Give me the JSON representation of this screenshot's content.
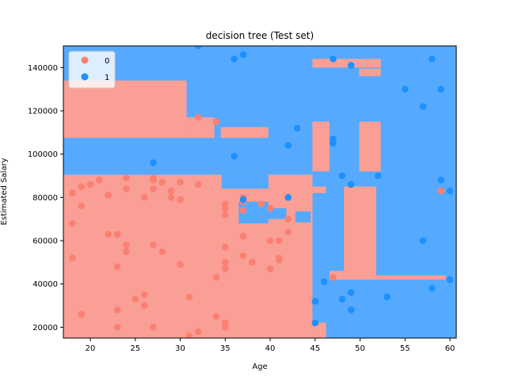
{
  "chart_data": {
    "type": "scatter",
    "title": "decision tree (Test set)",
    "xlabel": "Age",
    "ylabel": "Estimated Salary",
    "xlim": [
      17,
      60.7
    ],
    "ylim": [
      15000,
      150000
    ],
    "xticks": [
      20,
      25,
      30,
      35,
      40,
      45,
      50,
      55,
      60
    ],
    "yticks": [
      20000,
      40000,
      60000,
      80000,
      100000,
      120000,
      140000
    ],
    "grid": false,
    "legend_position": "top-left",
    "colors": {
      "class_0": "#fa8072",
      "class_1": "#1e90ff",
      "region_0": "#fa9f95",
      "region_1": "#55aaff"
    },
    "regions": [
      {
        "class": "0",
        "x": [
          17,
          30.7
        ],
        "y": [
          107500,
          134000
        ]
      },
      {
        "class": "1",
        "x": [
          30.7,
          44.5
        ],
        "y": [
          117000,
          134000
        ]
      },
      {
        "class": "0",
        "x": [
          30.7,
          33.8
        ],
        "y": [
          107500,
          117000
        ]
      },
      {
        "class": "0",
        "x": [
          34.5,
          39.8
        ],
        "y": [
          107500,
          112500
        ]
      },
      {
        "class": "0",
        "x": [
          17,
          44.7
        ],
        "y": [
          15000,
          90500
        ]
      },
      {
        "class": "1",
        "x": [
          34.6,
          39.8
        ],
        "y": [
          81000,
          90500
        ]
      },
      {
        "class": "0",
        "x": [
          34.5,
          44.7
        ],
        "y": [
          74000,
          84000
        ]
      },
      {
        "class": "1",
        "x": [
          36.5,
          39.8
        ],
        "y": [
          68000,
          78000
        ]
      },
      {
        "class": "1",
        "x": [
          39.5,
          41.8
        ],
        "y": [
          70000,
          75000
        ]
      },
      {
        "class": "1",
        "x": [
          42.8,
          44.5
        ],
        "y": [
          68500,
          73500
        ]
      },
      {
        "class": "0",
        "x": [
          44.7,
          46.2
        ],
        "y": [
          82000,
          85000
        ]
      },
      {
        "class": "0",
        "x": [
          44.7,
          46.2
        ],
        "y": [
          15000,
          22000
        ]
      },
      {
        "class": "0",
        "x": [
          44.7,
          46.2
        ],
        "y": [
          15000,
          22000
        ]
      },
      {
        "class": "0",
        "x": [
          45.2,
          46.2
        ],
        "y": [
          15000,
          22000
        ]
      },
      {
        "class": "0",
        "x": [
          44.7,
          46.6
        ],
        "y": [
          92000,
          115000
        ]
      },
      {
        "class": "0",
        "x": [
          44.7,
          52.3
        ],
        "y": [
          140000,
          144000
        ]
      },
      {
        "class": "0",
        "x": [
          49.9,
          52.3
        ],
        "y": [
          136000,
          139500
        ]
      },
      {
        "class": "0",
        "x": [
          49.9,
          52.3
        ],
        "y": [
          92000,
          115000
        ]
      },
      {
        "class": "0",
        "x": [
          46.6,
          51.8
        ],
        "y": [
          42000,
          85000
        ]
      },
      {
        "class": "1",
        "x": [
          46.6,
          48.2
        ],
        "y": [
          46000,
          85000
        ]
      },
      {
        "class": "0",
        "x": [
          47.2,
          59.5
        ],
        "y": [
          42000,
          44000
        ]
      }
    ],
    "series": [
      {
        "name": "0",
        "points": [
          [
            18,
            82000
          ],
          [
            18,
            68000
          ],
          [
            18,
            52000
          ],
          [
            19,
            85000
          ],
          [
            19,
            76000
          ],
          [
            19,
            26000
          ],
          [
            20,
            86000
          ],
          [
            21,
            88000
          ],
          [
            22,
            81000
          ],
          [
            22,
            63000
          ],
          [
            23,
            63000
          ],
          [
            23,
            48000
          ],
          [
            23,
            28000
          ],
          [
            23,
            20000
          ],
          [
            24,
            89000
          ],
          [
            24,
            84000
          ],
          [
            24,
            58000
          ],
          [
            24,
            55000
          ],
          [
            25,
            33000
          ],
          [
            26,
            80000
          ],
          [
            26,
            35000
          ],
          [
            26,
            30000
          ],
          [
            27,
            89000
          ],
          [
            27,
            88000
          ],
          [
            27,
            84000
          ],
          [
            27,
            58000
          ],
          [
            27,
            20000
          ],
          [
            28,
            87000
          ],
          [
            28,
            55000
          ],
          [
            29,
            83000
          ],
          [
            29,
            80000
          ],
          [
            30,
            87000
          ],
          [
            30,
            79000
          ],
          [
            30,
            49000
          ],
          [
            31,
            34000
          ],
          [
            31,
            16000
          ],
          [
            32,
            117000
          ],
          [
            32,
            86000
          ],
          [
            32,
            18000
          ],
          [
            34,
            115000
          ],
          [
            34,
            43000
          ],
          [
            34,
            25000
          ],
          [
            35,
            77000
          ],
          [
            35,
            75000
          ],
          [
            35,
            72000
          ],
          [
            35,
            57000
          ],
          [
            35,
            50000
          ],
          [
            35,
            47000
          ],
          [
            35,
            22000
          ],
          [
            35,
            20000
          ],
          [
            37,
            80000
          ],
          [
            37,
            78000
          ],
          [
            37,
            74000
          ],
          [
            37,
            62000
          ],
          [
            37,
            53000
          ],
          [
            38,
            50000
          ],
          [
            39,
            77000
          ],
          [
            40,
            75000
          ],
          [
            40,
            60000
          ],
          [
            40,
            47000
          ],
          [
            41,
            60000
          ],
          [
            41,
            52000
          ],
          [
            41,
            51000
          ],
          [
            42,
            80000
          ],
          [
            42,
            70000
          ],
          [
            42,
            64000
          ],
          [
            47,
            43000
          ],
          [
            59,
            83000
          ]
        ]
      },
      {
        "name": "1",
        "points": [
          [
            27,
            96000
          ],
          [
            32,
            150000
          ],
          [
            36,
            144000
          ],
          [
            36,
            99000
          ],
          [
            37,
            146000
          ],
          [
            37,
            79000
          ],
          [
            42,
            104000
          ],
          [
            42,
            80000
          ],
          [
            43,
            112000
          ],
          [
            45,
            32000
          ],
          [
            45,
            22000
          ],
          [
            46,
            41000
          ],
          [
            47,
            144000
          ],
          [
            47,
            107000
          ],
          [
            47,
            105000
          ],
          [
            48,
            90000
          ],
          [
            48,
            33000
          ],
          [
            49,
            141000
          ],
          [
            49,
            86000
          ],
          [
            49,
            36000
          ],
          [
            49,
            28000
          ],
          [
            52,
            90000
          ],
          [
            53,
            34000
          ],
          [
            55,
            130000
          ],
          [
            57,
            122000
          ],
          [
            57,
            60000
          ],
          [
            58,
            144000
          ],
          [
            58,
            38000
          ],
          [
            59,
            130000
          ],
          [
            59,
            88000
          ],
          [
            60,
            83000
          ],
          [
            60,
            42000
          ]
        ]
      }
    ]
  }
}
